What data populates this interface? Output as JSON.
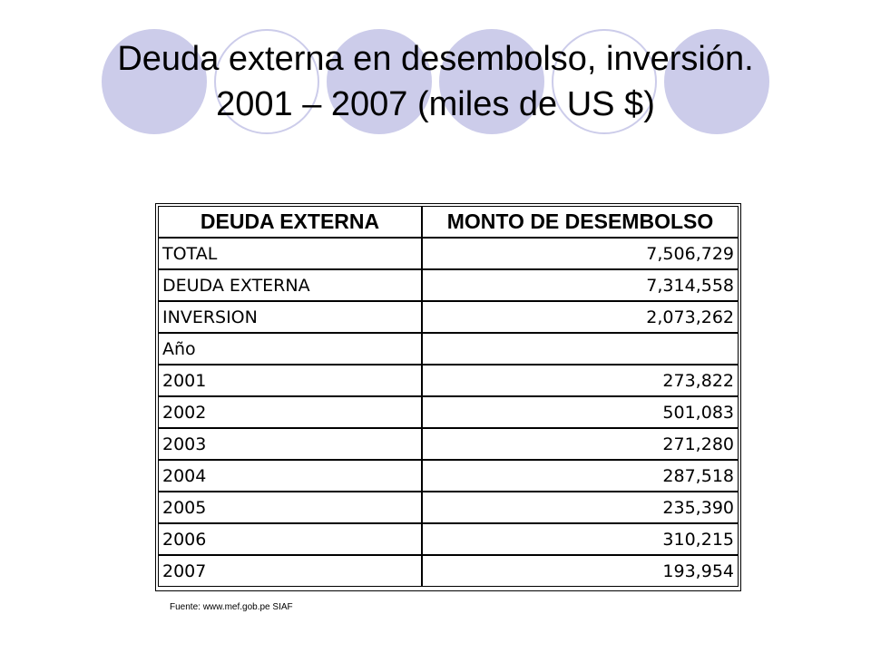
{
  "slide": {
    "title_line1": "Deuda externa en desembolso, inversión.",
    "title_line2": "2001 – 2007 (miles de US $)",
    "accent_color": "#ccccea"
  },
  "table": {
    "headers": [
      "DEUDA EXTERNA",
      "MONTO DE DESEMBOLSO"
    ],
    "rows": [
      {
        "label": "TOTAL",
        "value": "7,506,729"
      },
      {
        "label": "DEUDA EXTERNA",
        "value": "7,314,558"
      },
      {
        "label": "INVERSION",
        "value": "2,073,262"
      },
      {
        "label": "Año",
        "value": ""
      },
      {
        "label": "2001",
        "value": "273,822"
      },
      {
        "label": "2002",
        "value": "501,083"
      },
      {
        "label": "2003",
        "value": "271,280"
      },
      {
        "label": "2004",
        "value": "287,518"
      },
      {
        "label": "2005",
        "value": "235,390"
      },
      {
        "label": "2006",
        "value": "310,215"
      },
      {
        "label": "2007",
        "value": "193,954"
      }
    ]
  },
  "footer": {
    "source": "Fuente: www.mef.gob.pe SIAF"
  }
}
